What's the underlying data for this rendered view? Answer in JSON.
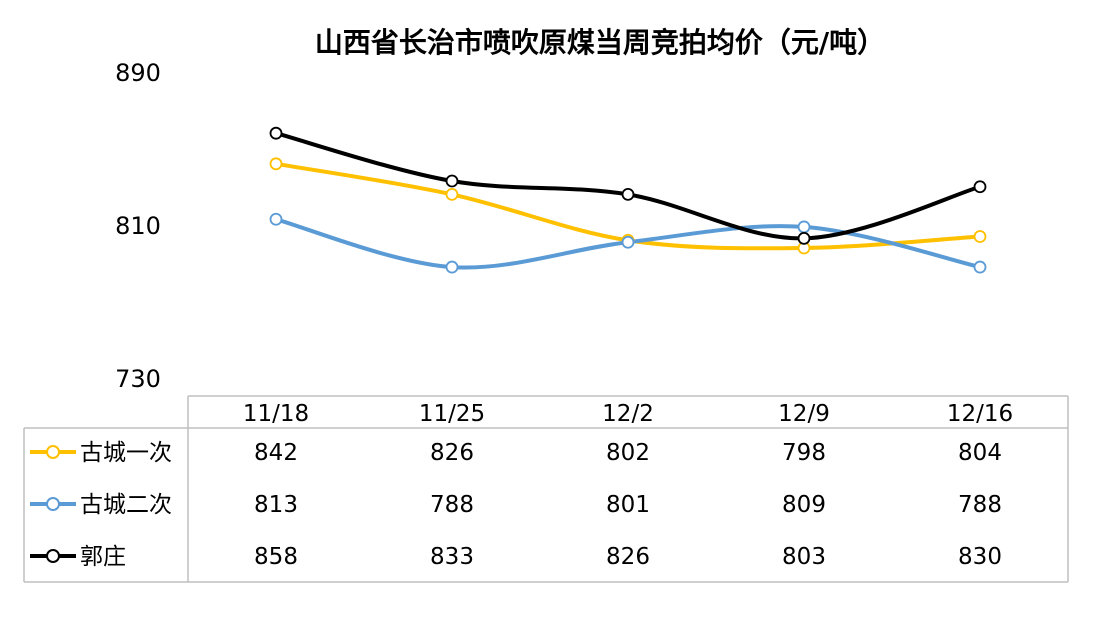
{
  "chart_data": {
    "type": "line",
    "title": "山西省长治市喷吹原煤当周竞拍均价（元/吨）",
    "categories": [
      "11/18",
      "11/25",
      "12/2",
      "12/9",
      "12/16"
    ],
    "ylim": [
      730,
      890
    ],
    "yticks": [
      "890",
      "810",
      "730"
    ],
    "grid": false,
    "legend": "data-table-rows",
    "series": [
      {
        "name": "古城一次",
        "values": [
          842,
          826,
          802,
          798,
          804
        ],
        "color": "#FFC000"
      },
      {
        "name": "古城二次",
        "values": [
          813,
          788,
          801,
          809,
          788
        ],
        "color": "#5B9BD5"
      },
      {
        "name": "郭庄",
        "values": [
          858,
          833,
          826,
          803,
          830
        ],
        "color": "#000000"
      }
    ]
  }
}
